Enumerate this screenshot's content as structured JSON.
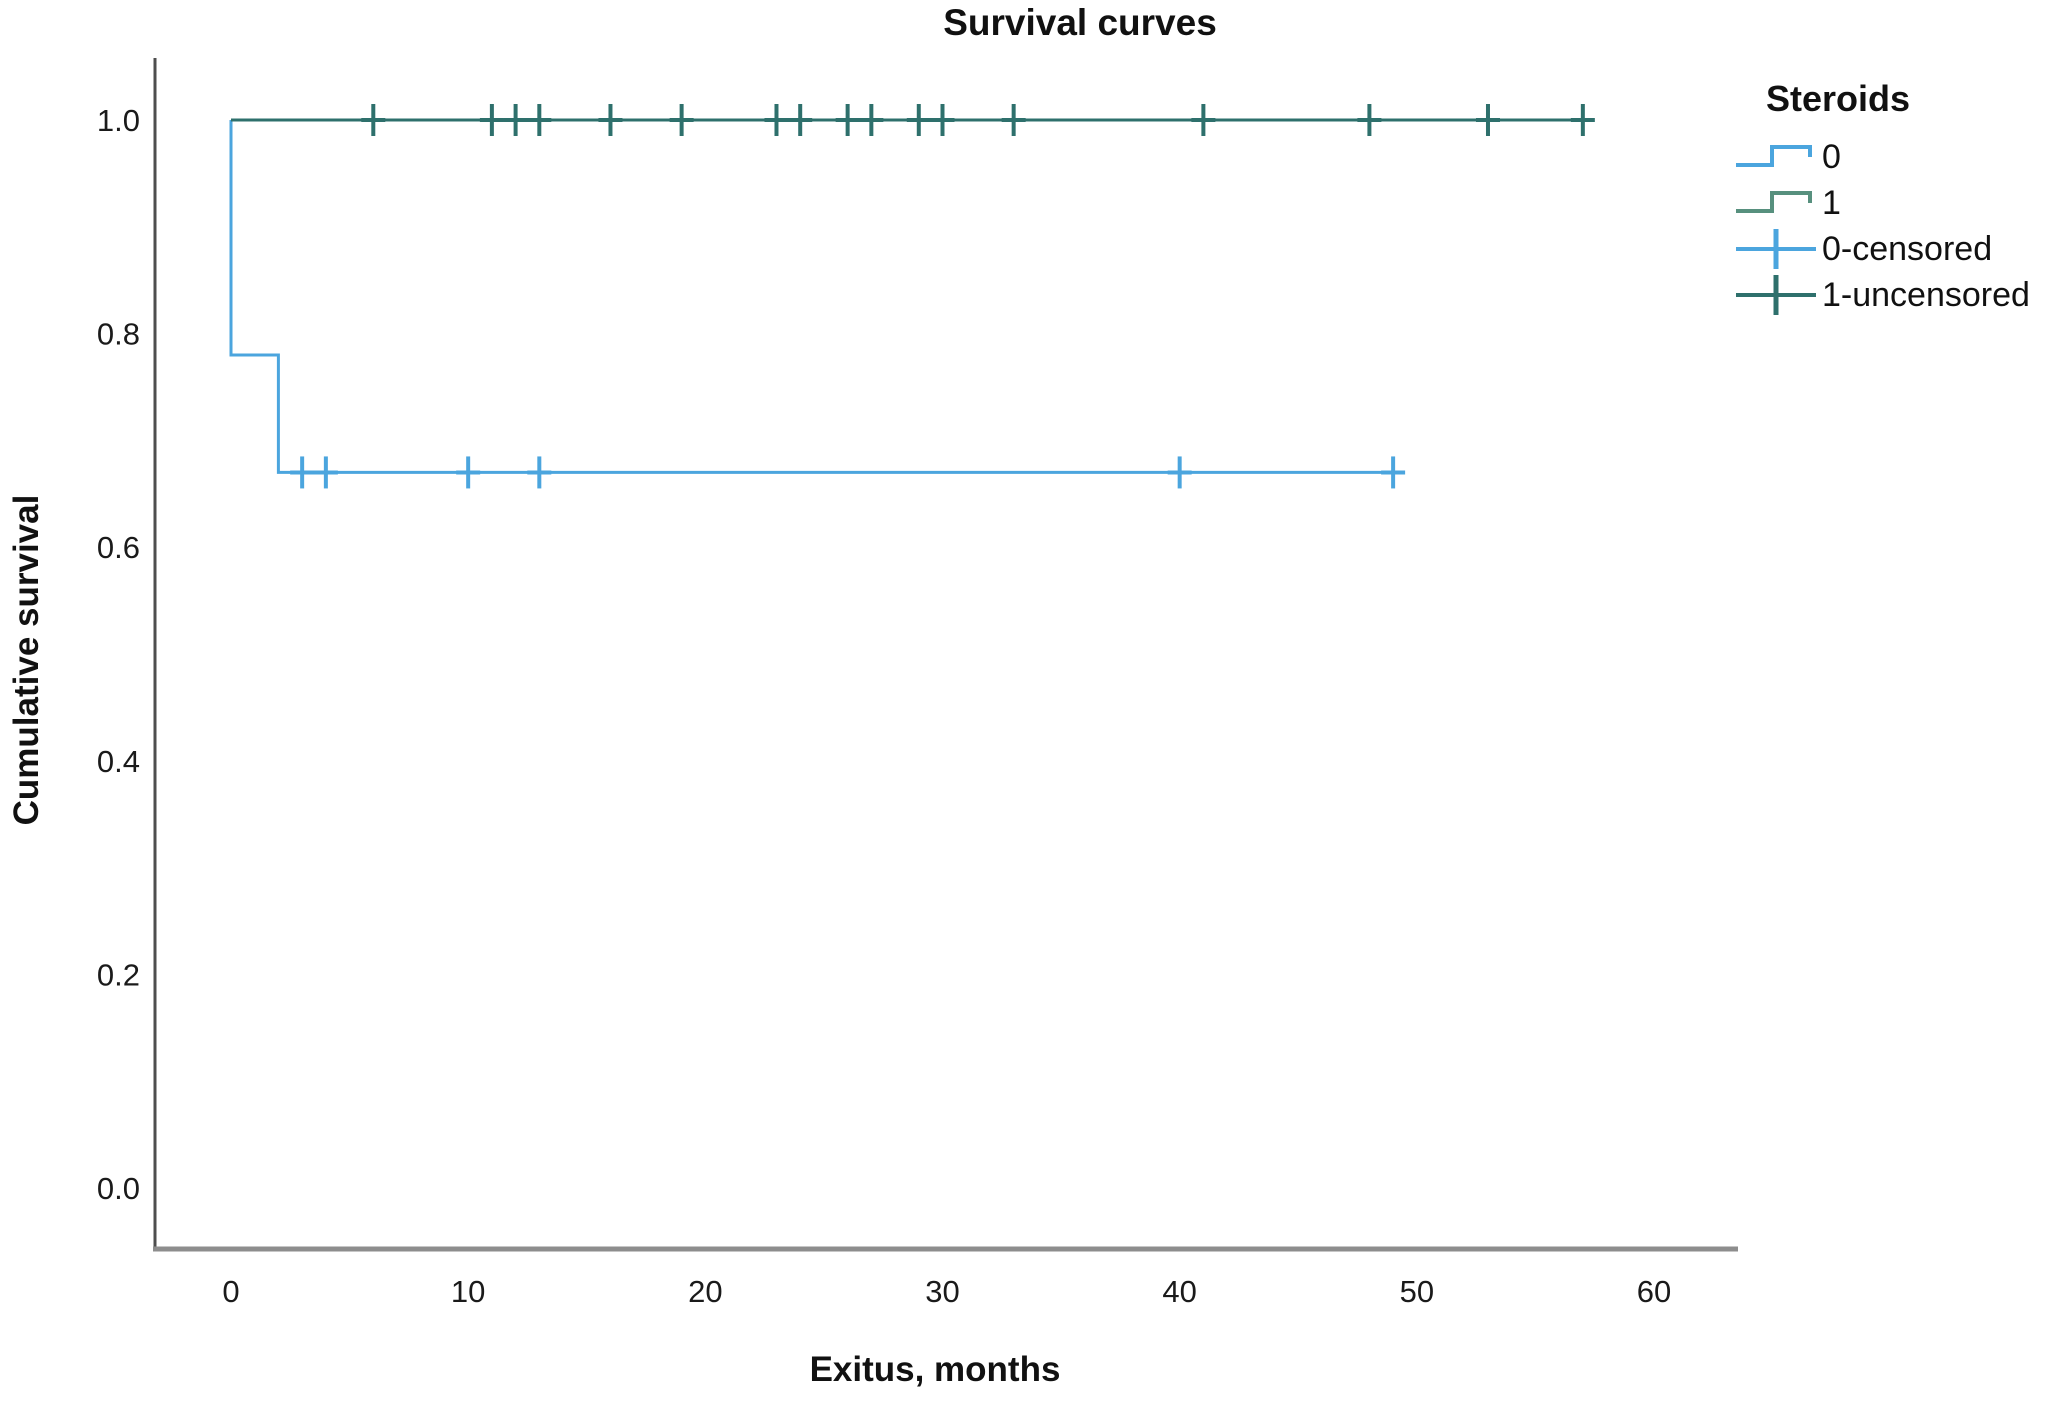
{
  "title": "Survival curves",
  "axes": {
    "x_label": "Exitus, months",
    "y_label": "Cumulative survival"
  },
  "legend": {
    "title": "Steroids",
    "items": [
      {
        "label": "0",
        "symbol": "step-line-icon",
        "color": "#4BA5DE"
      },
      {
        "label": "1",
        "symbol": "step-line-icon",
        "color": "#57907E"
      },
      {
        "label": "0-censored",
        "symbol": "plus-line-icon",
        "color": "#4BA5DE"
      },
      {
        "label": "1-uncensored",
        "symbol": "plus-line-icon",
        "color": "#2E706C"
      }
    ]
  },
  "chart_data": {
    "type": "line",
    "subtype": "kaplan-meier-step",
    "title": "Survival curves",
    "xlabel": "Exitus, months",
    "ylabel": "Cumulative survival",
    "xlim": [
      0,
      60
    ],
    "ylim": [
      0.0,
      1.0
    ],
    "xticks": [
      "0",
      "10",
      "20",
      "30",
      "40",
      "50",
      "60"
    ],
    "yticks": [
      "1.0",
      "0.8",
      "0.6",
      "0.4",
      "0.2",
      "0.0"
    ],
    "grid": false,
    "legend_position": "right-outside",
    "legend_title": "Steroids",
    "axis_colors": {
      "y_axis_line": "#4e4e4e",
      "x_axis_line": "#8d8d8d",
      "tick_text": "#1a1a1a"
    },
    "series": [
      {
        "name": "0",
        "group": "Steroids = 0",
        "color": "#4BA5DE",
        "steps": [
          [
            0,
            1.0
          ],
          [
            0,
            0.78
          ],
          [
            2,
            0.78
          ],
          [
            2,
            0.67
          ],
          [
            49.2,
            0.67
          ]
        ],
        "censored": [
          {
            "x": 3,
            "y": 0.67
          },
          {
            "x": 4,
            "y": 0.67
          },
          {
            "x": 10,
            "y": 0.67
          },
          {
            "x": 13,
            "y": 0.67
          },
          {
            "x": 40,
            "y": 0.67
          },
          {
            "x": 49,
            "y": 0.67
          }
        ]
      },
      {
        "name": "1",
        "group": "Steroids = 1",
        "color": "#2E706C",
        "steps": [
          [
            0,
            1.0
          ],
          [
            57.3,
            1.0
          ]
        ],
        "censored": [
          {
            "x": 6,
            "y": 1.0
          },
          {
            "x": 11,
            "y": 1.0
          },
          {
            "x": 12,
            "y": 1.0
          },
          {
            "x": 13,
            "y": 1.0
          },
          {
            "x": 16,
            "y": 1.0
          },
          {
            "x": 19,
            "y": 1.0
          },
          {
            "x": 23,
            "y": 1.0
          },
          {
            "x": 24,
            "y": 1.0
          },
          {
            "x": 26,
            "y": 1.0
          },
          {
            "x": 27,
            "y": 1.0
          },
          {
            "x": 29,
            "y": 1.0
          },
          {
            "x": 30,
            "y": 1.0
          },
          {
            "x": 33,
            "y": 1.0
          },
          {
            "x": 41,
            "y": 1.0
          },
          {
            "x": 48,
            "y": 1.0
          },
          {
            "x": 53,
            "y": 1.0
          },
          {
            "x": 57,
            "y": 1.0
          }
        ]
      }
    ]
  }
}
